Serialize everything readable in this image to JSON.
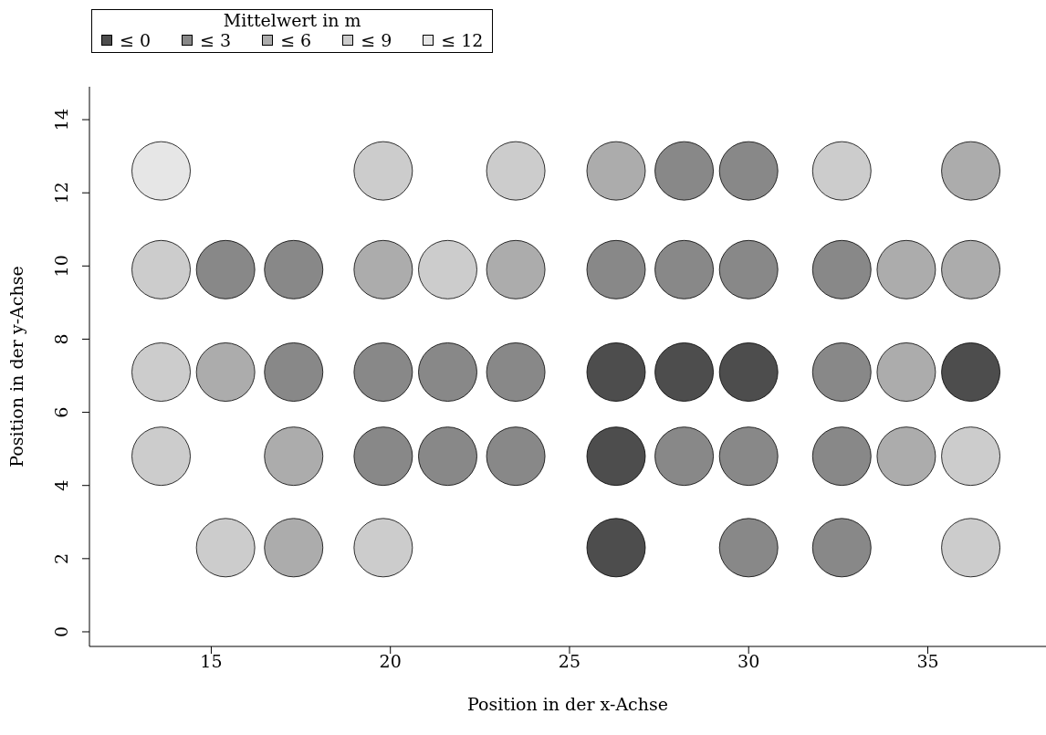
{
  "chart_data": {
    "type": "scatter",
    "xlabel": "Position in der x-Achse",
    "ylabel": "Position in der y-Achse",
    "legend_title": "Mittelwert in m",
    "legend": "top left",
    "marker": "circle",
    "grid": false,
    "xlim": [
      11.6,
      38.3
    ],
    "xticks": [
      15,
      20,
      25,
      30,
      35
    ],
    "ylim": [
      -0.4,
      14.9
    ],
    "yticks": [
      0,
      2,
      4,
      6,
      8,
      10,
      12,
      14
    ],
    "series": [
      {
        "name": "≤ 0",
        "color": "#4d4d4d",
        "x": [
          26.3,
          28.2,
          30.0,
          26.3,
          26.3,
          36.2
        ],
        "values": [
          7.1,
          7.1,
          7.1,
          4.8,
          2.3,
          7.1
        ]
      },
      {
        "name": "≤ 3",
        "color": "#888888",
        "x": [
          28.2,
          30.0,
          15.4,
          17.3,
          26.3,
          28.2,
          30.0,
          32.6,
          17.3,
          19.8,
          21.6,
          23.5,
          32.6,
          19.8,
          21.6,
          23.5,
          28.2,
          30.0,
          32.6,
          30.0,
          32.6
        ],
        "values": [
          12.6,
          12.6,
          9.9,
          9.9,
          9.9,
          9.9,
          9.9,
          9.9,
          7.1,
          7.1,
          7.1,
          7.1,
          7.1,
          4.8,
          4.8,
          4.8,
          4.8,
          4.8,
          4.8,
          2.3,
          2.3
        ]
      },
      {
        "name": "≤ 6",
        "color": "#acacac",
        "x": [
          26.3,
          36.2,
          19.8,
          23.5,
          34.4,
          36.2,
          15.4,
          34.4,
          17.3,
          34.4,
          17.3
        ],
        "values": [
          12.6,
          12.6,
          9.9,
          9.9,
          9.9,
          9.9,
          7.1,
          7.1,
          4.8,
          4.8,
          2.3
        ]
      },
      {
        "name": "≤ 9",
        "color": "#cccccc",
        "x": [
          19.8,
          23.5,
          32.6,
          13.6,
          21.6,
          13.6,
          13.6,
          36.2,
          15.4,
          19.8,
          36.2
        ],
        "values": [
          12.6,
          12.6,
          12.6,
          9.9,
          9.9,
          7.1,
          4.8,
          4.8,
          2.3,
          2.3,
          2.3
        ]
      },
      {
        "name": "≤ 12",
        "color": "#e6e6e6",
        "x": [
          13.6
        ],
        "values": [
          12.6
        ]
      }
    ]
  }
}
